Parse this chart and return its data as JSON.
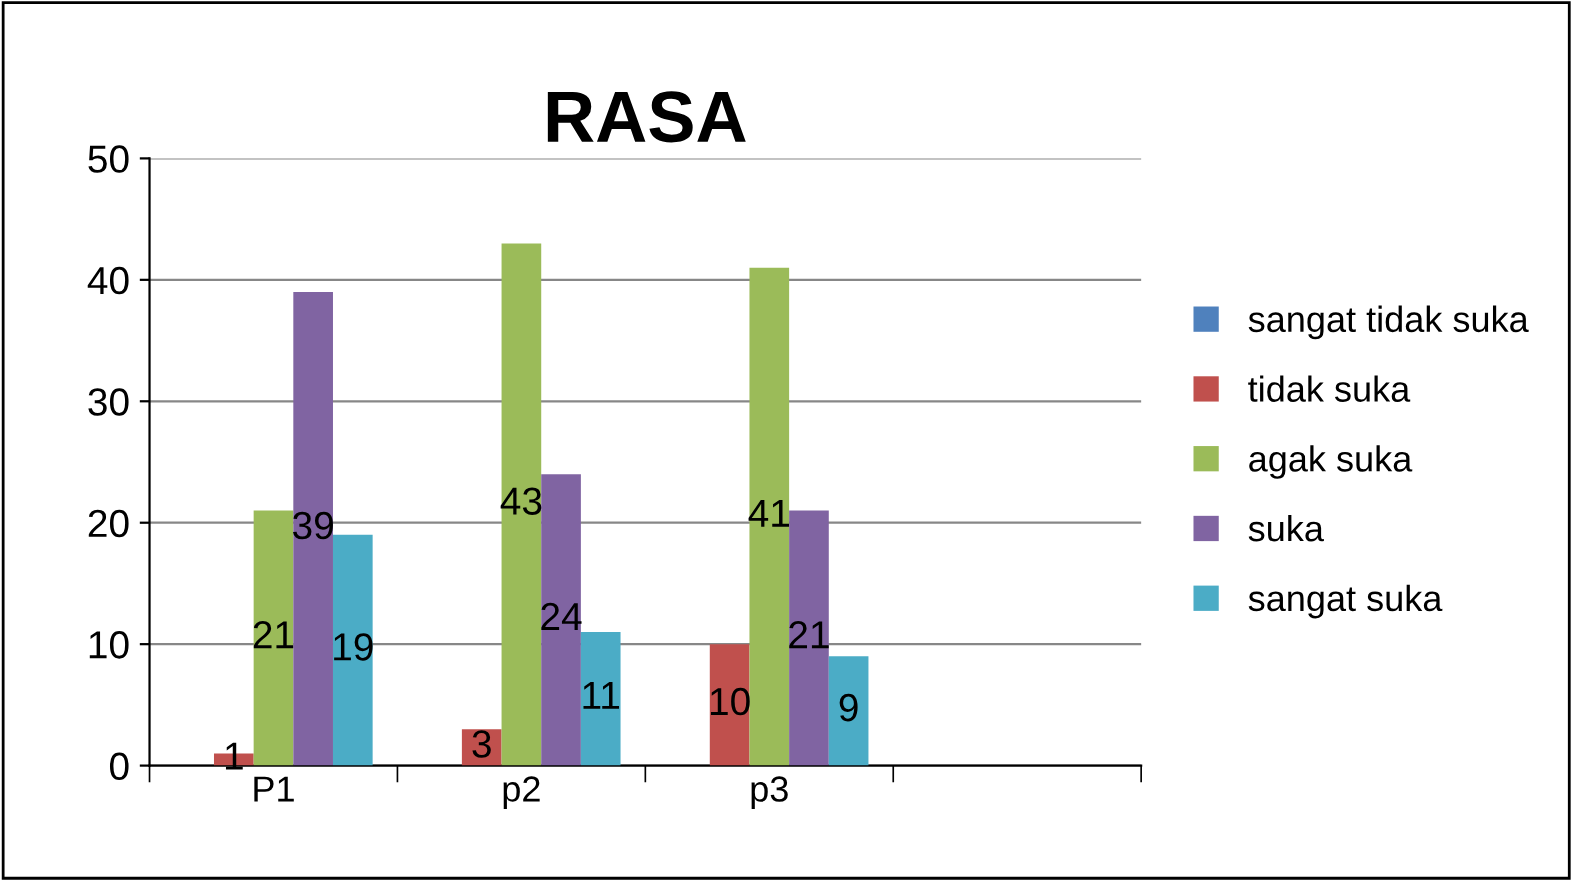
{
  "chart_data": {
    "type": "bar",
    "title": "RASA",
    "categories": [
      "P1",
      "p2",
      "p3",
      null
    ],
    "series": [
      {
        "name": "sangat tidak suka",
        "color": "#4f81bd",
        "values": [
          0,
          0,
          0,
          null
        ],
        "value_labels": [
          null,
          null,
          null,
          null
        ]
      },
      {
        "name": "tidak suka",
        "color": "#c0504d",
        "values": [
          1,
          3,
          10,
          null
        ],
        "value_labels": [
          "1",
          "3",
          "10",
          null
        ]
      },
      {
        "name": "agak suka",
        "color": "#9bbb59",
        "values": [
          21,
          43,
          41,
          null
        ],
        "value_labels": [
          "21",
          "43",
          "41",
          null
        ]
      },
      {
        "name": "suka",
        "color": "#8064a2",
        "values": [
          39,
          24,
          21,
          null
        ],
        "value_labels": [
          "39",
          "24",
          "21",
          null
        ]
      },
      {
        "name": "sangat suka",
        "color": "#4bacc6",
        "values": [
          19,
          11,
          9,
          null
        ],
        "value_labels": [
          "19",
          "11",
          "9",
          null
        ]
      }
    ],
    "ylim": [
      0,
      50
    ],
    "yticks": [
      0,
      10,
      20,
      30,
      40,
      50
    ],
    "grid": "y",
    "legend": "right"
  }
}
